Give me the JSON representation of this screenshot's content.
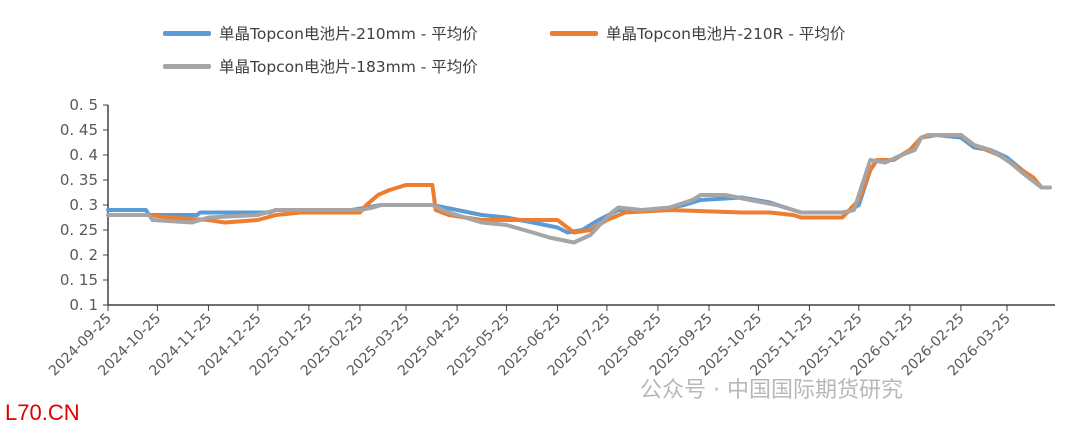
{
  "chart_data": {
    "type": "line",
    "title": "",
    "xlabel": "",
    "ylabel": "",
    "ylim": [
      0.1,
      0.5
    ],
    "yticks": [
      "0. 1",
      "0. 15",
      "0. 2",
      "0. 25",
      "0. 3",
      "0. 35",
      "0. 4",
      "0. 45",
      "0. 5"
    ],
    "ytick_values": [
      0.1,
      0.15,
      0.2,
      0.25,
      0.3,
      0.35,
      0.4,
      0.45,
      0.5
    ],
    "xlim": [
      "2024-09-25",
      "2026-04-20"
    ],
    "xticks": [
      "2024-09-25",
      "2024-10-25",
      "2024-11-25",
      "2024-12-25",
      "2025-01-25",
      "2025-02-25",
      "2025-03-25",
      "2025-04-25",
      "2025-05-25",
      "2025-06-25",
      "2025-07-25",
      "2025-08-25",
      "2025-09-25",
      "2025-10-25",
      "2025-11-25",
      "2025-12-25",
      "2026-01-25",
      "2026-02-25",
      "2026-03-25"
    ],
    "grid": false,
    "legend_position": "top",
    "series": [
      {
        "name": "单晶Topcon电池片-210mm - 平均价",
        "color": "#5B9BD5",
        "points": [
          [
            "2024-09-25",
            0.29
          ],
          [
            "2024-10-18",
            0.29
          ],
          [
            "2024-10-20",
            0.28
          ],
          [
            "2024-11-18",
            0.28
          ],
          [
            "2024-11-20",
            0.285
          ],
          [
            "2025-01-01",
            0.285
          ],
          [
            "2025-01-05",
            0.29
          ],
          [
            "2025-02-20",
            0.29
          ],
          [
            "2025-03-01",
            0.295
          ],
          [
            "2025-03-10",
            0.3
          ],
          [
            "2025-04-10",
            0.3
          ],
          [
            "2025-04-25",
            0.29
          ],
          [
            "2025-05-10",
            0.28
          ],
          [
            "2025-05-25",
            0.275
          ],
          [
            "2025-06-10",
            0.265
          ],
          [
            "2025-06-25",
            0.255
          ],
          [
            "2025-07-01",
            0.245
          ],
          [
            "2025-07-10",
            0.25
          ],
          [
            "2025-07-20",
            0.27
          ],
          [
            "2025-08-01",
            0.29
          ],
          [
            "2025-08-25",
            0.29
          ],
          [
            "2025-09-10",
            0.3
          ],
          [
            "2025-09-20",
            0.31
          ],
          [
            "2025-10-15",
            0.315
          ],
          [
            "2025-11-01",
            0.305
          ],
          [
            "2025-11-15",
            0.29
          ],
          [
            "2025-11-20",
            0.285
          ],
          [
            "2025-12-18",
            0.285
          ],
          [
            "2025-12-25",
            0.3
          ],
          [
            "2026-01-01",
            0.37
          ],
          [
            "2026-01-05",
            0.39
          ],
          [
            "2026-01-15",
            0.39
          ],
          [
            "2026-01-25",
            0.41
          ],
          [
            "2026-02-01",
            0.435
          ],
          [
            "2026-02-10",
            0.44
          ],
          [
            "2026-02-25",
            0.435
          ],
          [
            "2026-03-05",
            0.415
          ],
          [
            "2026-03-15",
            0.41
          ],
          [
            "2026-03-25",
            0.395
          ],
          [
            "2026-04-05",
            0.365
          ],
          [
            "2026-04-15",
            0.335
          ],
          [
            "2026-04-20",
            0.335
          ]
        ]
      },
      {
        "name": "单晶Topcon电池片-210R - 平均价",
        "color": "#ED7D31",
        "points": [
          [
            "2024-09-25",
            0.28
          ],
          [
            "2024-10-20",
            0.28
          ],
          [
            "2024-11-01",
            0.275
          ],
          [
            "2024-11-25",
            0.27
          ],
          [
            "2024-12-05",
            0.265
          ],
          [
            "2024-12-25",
            0.27
          ],
          [
            "2025-01-05",
            0.28
          ],
          [
            "2025-01-20",
            0.285
          ],
          [
            "2025-02-25",
            0.285
          ],
          [
            "2025-03-01",
            0.3
          ],
          [
            "2025-03-08",
            0.32
          ],
          [
            "2025-03-15",
            0.33
          ],
          [
            "2025-03-25",
            0.34
          ],
          [
            "2025-04-10",
            0.34
          ],
          [
            "2025-04-12",
            0.29
          ],
          [
            "2025-04-20",
            0.28
          ],
          [
            "2025-05-10",
            0.27
          ],
          [
            "2025-06-25",
            0.27
          ],
          [
            "2025-07-01",
            0.255
          ],
          [
            "2025-07-05",
            0.245
          ],
          [
            "2025-07-15",
            0.25
          ],
          [
            "2025-07-25",
            0.27
          ],
          [
            "2025-08-05",
            0.285
          ],
          [
            "2025-09-01",
            0.29
          ],
          [
            "2025-10-15",
            0.285
          ],
          [
            "2025-11-01",
            0.285
          ],
          [
            "2025-11-15",
            0.28
          ],
          [
            "2025-11-20",
            0.275
          ],
          [
            "2025-12-15",
            0.275
          ],
          [
            "2025-12-25",
            0.31
          ],
          [
            "2026-01-01",
            0.37
          ],
          [
            "2026-01-05",
            0.39
          ],
          [
            "2026-01-15",
            0.39
          ],
          [
            "2026-01-25",
            0.41
          ],
          [
            "2026-02-01",
            0.435
          ],
          [
            "2026-02-10",
            0.44
          ],
          [
            "2026-02-25",
            0.44
          ],
          [
            "2026-03-05",
            0.42
          ],
          [
            "2026-03-20",
            0.4
          ],
          [
            "2026-04-10",
            0.355
          ],
          [
            "2026-04-15",
            0.335
          ],
          [
            "2026-04-20",
            0.335
          ]
        ]
      },
      {
        "name": "单晶Topcon电池片-183mm - 平均价",
        "color": "#A5A5A5",
        "points": [
          [
            "2024-09-25",
            0.28
          ],
          [
            "2024-10-20",
            0.28
          ],
          [
            "2024-10-22",
            0.27
          ],
          [
            "2024-11-15",
            0.265
          ],
          [
            "2024-11-25",
            0.275
          ],
          [
            "2024-12-25",
            0.28
          ],
          [
            "2025-01-05",
            0.29
          ],
          [
            "2025-02-25",
            0.29
          ],
          [
            "2025-03-05",
            0.295
          ],
          [
            "2025-03-10",
            0.3
          ],
          [
            "2025-04-10",
            0.3
          ],
          [
            "2025-04-20",
            0.285
          ],
          [
            "2025-05-10",
            0.265
          ],
          [
            "2025-05-25",
            0.26
          ],
          [
            "2025-06-10",
            0.245
          ],
          [
            "2025-06-20",
            0.235
          ],
          [
            "2025-07-05",
            0.225
          ],
          [
            "2025-07-15",
            0.24
          ],
          [
            "2025-07-22",
            0.265
          ],
          [
            "2025-07-28",
            0.285
          ],
          [
            "2025-08-01",
            0.295
          ],
          [
            "2025-08-15",
            0.29
          ],
          [
            "2025-09-01",
            0.295
          ],
          [
            "2025-09-15",
            0.31
          ],
          [
            "2025-09-20",
            0.32
          ],
          [
            "2025-10-05",
            0.32
          ],
          [
            "2025-10-20",
            0.31
          ],
          [
            "2025-11-05",
            0.3
          ],
          [
            "2025-11-20",
            0.285
          ],
          [
            "2025-12-15",
            0.285
          ],
          [
            "2025-12-22",
            0.29
          ],
          [
            "2025-12-28",
            0.35
          ],
          [
            "2026-01-01",
            0.39
          ],
          [
            "2026-01-10",
            0.385
          ],
          [
            "2026-01-20",
            0.4
          ],
          [
            "2026-01-28",
            0.41
          ],
          [
            "2026-02-01",
            0.435
          ],
          [
            "2026-02-05",
            0.44
          ],
          [
            "2026-02-25",
            0.44
          ],
          [
            "2026-03-05",
            0.42
          ],
          [
            "2026-03-15",
            0.41
          ],
          [
            "2026-03-25",
            0.39
          ],
          [
            "2026-04-05",
            0.36
          ],
          [
            "2026-04-15",
            0.335
          ],
          [
            "2026-04-20",
            0.335
          ]
        ]
      }
    ]
  },
  "legend": [
    "单晶Topcon电池片-210mm - 平均价",
    "单晶Topcon电池片-210R - 平均价",
    "单晶Topcon电池片-183mm - 平均价"
  ],
  "watermark": "公众号 · 中国国际期货研究",
  "site_logo": "L70.CN"
}
